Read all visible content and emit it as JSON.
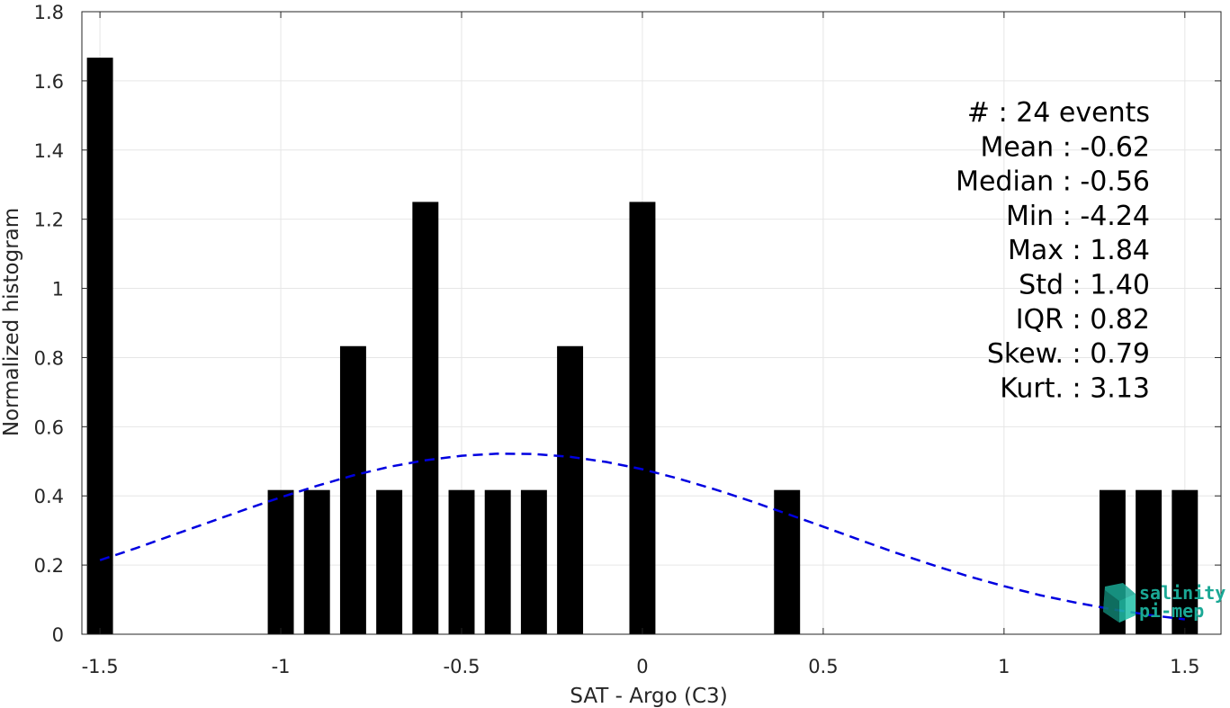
{
  "chart_data": {
    "type": "bar",
    "xlabel": "SAT - Argo (C3)",
    "ylabel": "Normalized histogram",
    "xlim": [
      -1.55,
      1.6
    ],
    "ylim": [
      0,
      1.8
    ],
    "xticks": [
      -1.5,
      -1,
      -0.5,
      0,
      0.5,
      1,
      1.5
    ],
    "xtick_labels": [
      "-1.5",
      "-1",
      "-0.5",
      "0",
      "0.5",
      "1",
      "1.5"
    ],
    "yticks": [
      0,
      0.2,
      0.4,
      0.6,
      0.8,
      1,
      1.2,
      1.4,
      1.6,
      1.8
    ],
    "ytick_labels": [
      "0",
      "0.2",
      "0.4",
      "0.6",
      "0.8",
      "1",
      "1.2",
      "1.4",
      "1.6",
      "1.8"
    ],
    "grid": true,
    "bar_color": "#000000",
    "bars": [
      {
        "x": -1.5,
        "value": 1.667
      },
      {
        "x": -1.0,
        "value": 0.417
      },
      {
        "x": -0.9,
        "value": 0.417
      },
      {
        "x": -0.8,
        "value": 0.833
      },
      {
        "x": -0.7,
        "value": 0.417
      },
      {
        "x": -0.6,
        "value": 1.25
      },
      {
        "x": -0.5,
        "value": 0.417
      },
      {
        "x": -0.4,
        "value": 0.417
      },
      {
        "x": -0.3,
        "value": 0.417
      },
      {
        "x": -0.2,
        "value": 0.833
      },
      {
        "x": 0.0,
        "value": 1.25
      },
      {
        "x": 0.4,
        "value": 0.417
      },
      {
        "x": 1.3,
        "value": 0.417
      },
      {
        "x": 1.4,
        "value": 0.417
      },
      {
        "x": 1.5,
        "value": 0.417
      }
    ],
    "fit_curve": {
      "style": "dashed",
      "color": "#0000e0",
      "x": [
        -1.5,
        -1.4,
        -1.3,
        -1.2,
        -1.1,
        -1.0,
        -0.9,
        -0.8,
        -0.7,
        -0.6,
        -0.5,
        -0.4,
        -0.3,
        -0.2,
        -0.1,
        0.0,
        0.1,
        0.2,
        0.3,
        0.4,
        0.5,
        0.6,
        0.7,
        0.8,
        0.9,
        1.0,
        1.1,
        1.2,
        1.3,
        1.4,
        1.5
      ],
      "y": [
        0.214,
        0.249,
        0.286,
        0.323,
        0.36,
        0.396,
        0.429,
        0.459,
        0.484,
        0.503,
        0.516,
        0.522,
        0.521,
        0.513,
        0.498,
        0.477,
        0.45,
        0.419,
        0.385,
        0.348,
        0.311,
        0.273,
        0.236,
        0.201,
        0.168,
        0.139,
        0.113,
        0.091,
        0.072,
        0.056,
        0.043
      ]
    },
    "annotations": [
      "#  : 24 events",
      "Mean : -0.62",
      "Median : -0.56",
      "Min : -4.24",
      "Max : 1.84",
      "Std : 1.40",
      "IQR : 0.82",
      "Skew. : 0.79",
      "Kurt. : 3.13"
    ]
  },
  "logo": {
    "line1": "salinity",
    "line2": "pi-mep",
    "color": "#1aa895"
  }
}
